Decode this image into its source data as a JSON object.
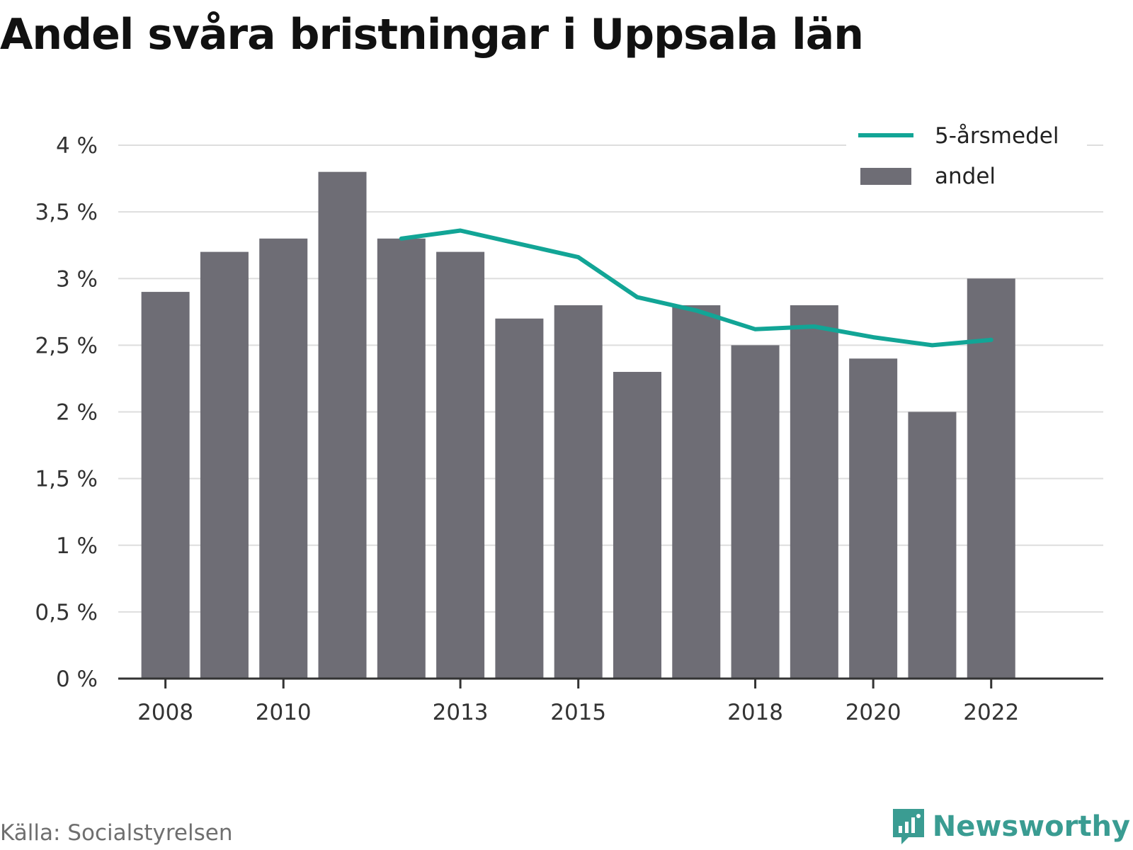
{
  "title": "Andel svåra bristningar i Uppsala län",
  "source": "Källa: Socialstyrelsen",
  "brand": "Newsworthy",
  "colors": {
    "bar": "#6e6d75",
    "line": "#12a596",
    "grid": "#dedede",
    "axis": "#333333",
    "brand": "#3a9c92"
  },
  "chart_data": {
    "type": "bar",
    "x": [
      2008,
      2009,
      2010,
      2011,
      2012,
      2013,
      2014,
      2015,
      2016,
      2017,
      2018,
      2019,
      2020,
      2021,
      2022
    ],
    "x_tick_labels": [
      "2008",
      "2010",
      "2013",
      "2015",
      "2018",
      "2020",
      "2022"
    ],
    "y_tick_labels": [
      "0 %",
      "0,5 %",
      "1 %",
      "1,5 %",
      "2 %",
      "2,5 %",
      "3 %",
      "3,5 %",
      "4 %"
    ],
    "ylim": [
      0,
      4
    ],
    "y_ticks": [
      0,
      0.5,
      1,
      1.5,
      2,
      2.5,
      3,
      3.5,
      4
    ],
    "grid": true,
    "legend_position": "top-right",
    "series": [
      {
        "name": "andel",
        "kind": "bar",
        "values": [
          2.9,
          3.2,
          3.3,
          3.8,
          3.3,
          3.2,
          2.7,
          2.8,
          2.3,
          2.8,
          2.5,
          2.8,
          2.4,
          2.0,
          3.0
        ]
      },
      {
        "name": "5-årsmedel",
        "kind": "line",
        "values": [
          null,
          null,
          null,
          null,
          3.3,
          3.36,
          3.26,
          3.16,
          2.86,
          2.76,
          2.62,
          2.64,
          2.56,
          2.5,
          2.54
        ]
      }
    ]
  }
}
